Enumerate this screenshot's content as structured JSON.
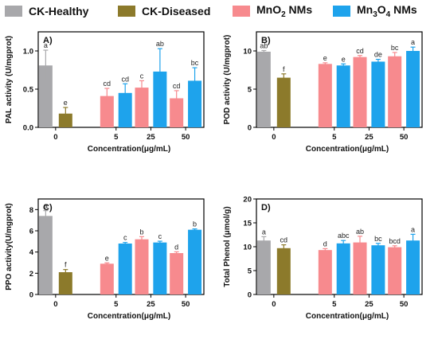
{
  "legend": [
    {
      "label": "CK-Healthy",
      "color": "#a8a8ab"
    },
    {
      "label": "CK-Diseased",
      "color": "#8c7a2b"
    },
    {
      "label": "MnO",
      "sub": "2",
      "suffix": " NMs",
      "color": "#f78a8e"
    },
    {
      "label": "Mn",
      "sub": "3",
      "mid": "O",
      "sub2": "4",
      "suffix": " NMs",
      "color": "#1ea3ec"
    }
  ],
  "chart_data": [
    {
      "type": "bar",
      "panel": "A)",
      "ylabel": "PAL activity (U/mgprot)",
      "xlabel": "Concentration(μg/mL)",
      "categories": [
        "0",
        "5",
        "25",
        "50"
      ],
      "ylim": [
        0,
        1.25
      ],
      "yticks": [
        "0.0",
        "0.5",
        "1.0"
      ],
      "ytick_values": [
        0,
        0.5,
        1.0
      ],
      "bars": [
        {
          "group": 0,
          "series": 0,
          "value": 0.81,
          "err": 0.2,
          "letter": "a"
        },
        {
          "group": 0,
          "series": 1,
          "value": 0.18,
          "err": 0.08,
          "letter": "e"
        },
        {
          "group": 1,
          "series": 2,
          "value": 0.41,
          "err": 0.1,
          "letter": "cd"
        },
        {
          "group": 1,
          "series": 3,
          "value": 0.45,
          "err": 0.12,
          "letter": "cd"
        },
        {
          "group": 2,
          "series": 2,
          "value": 0.52,
          "err": 0.09,
          "letter": "c"
        },
        {
          "group": 2,
          "series": 3,
          "value": 0.73,
          "err": 0.3,
          "letter": "ab"
        },
        {
          "group": 3,
          "series": 2,
          "value": 0.38,
          "err": 0.1,
          "letter": "cd"
        },
        {
          "group": 3,
          "series": 3,
          "value": 0.61,
          "err": 0.17,
          "letter": "bc"
        }
      ]
    },
    {
      "type": "bar",
      "panel": "B)",
      "ylabel": "POD activity (U/mgprot)",
      "xlabel": "Concentration(μg/mL)",
      "categories": [
        "0",
        "5",
        "25",
        "50"
      ],
      "ylim": [
        0,
        12.5
      ],
      "yticks": [
        "0",
        "5",
        "10"
      ],
      "ytick_values": [
        0,
        5,
        10
      ],
      "bars": [
        {
          "group": 0,
          "series": 0,
          "value": 9.9,
          "err": 0.15,
          "letter": "ab"
        },
        {
          "group": 0,
          "series": 1,
          "value": 6.5,
          "err": 0.5,
          "letter": "f"
        },
        {
          "group": 1,
          "series": 2,
          "value": 8.3,
          "err": 0.15,
          "letter": "e"
        },
        {
          "group": 1,
          "series": 3,
          "value": 8.1,
          "err": 0.2,
          "letter": "e"
        },
        {
          "group": 2,
          "series": 2,
          "value": 9.2,
          "err": 0.2,
          "letter": "cd"
        },
        {
          "group": 2,
          "series": 3,
          "value": 8.6,
          "err": 0.3,
          "letter": "de"
        },
        {
          "group": 3,
          "series": 2,
          "value": 9.3,
          "err": 0.5,
          "letter": "bc"
        },
        {
          "group": 3,
          "series": 3,
          "value": 10.0,
          "err": 0.5,
          "letter": "a"
        }
      ]
    },
    {
      "type": "bar",
      "panel": "C)",
      "ylabel": "PPO activity(U/mgprot)",
      "xlabel": "Concentration(μg/mL)",
      "categories": [
        "0",
        "5",
        "25",
        "50"
      ],
      "ylim": [
        0,
        9
      ],
      "yticks": [
        "0",
        "2",
        "4",
        "6",
        "8"
      ],
      "ytick_values": [
        0,
        2,
        4,
        6,
        8
      ],
      "bars": [
        {
          "group": 0,
          "series": 0,
          "value": 7.4,
          "err": 0.5,
          "letter": "a"
        },
        {
          "group": 0,
          "series": 1,
          "value": 2.1,
          "err": 0.25,
          "letter": "f"
        },
        {
          "group": 1,
          "series": 2,
          "value": 2.9,
          "err": 0.08,
          "letter": "e"
        },
        {
          "group": 1,
          "series": 3,
          "value": 4.8,
          "err": 0.1,
          "letter": "c"
        },
        {
          "group": 2,
          "series": 2,
          "value": 5.2,
          "err": 0.25,
          "letter": "b"
        },
        {
          "group": 2,
          "series": 3,
          "value": 4.9,
          "err": 0.12,
          "letter": "c"
        },
        {
          "group": 3,
          "series": 2,
          "value": 3.9,
          "err": 0.12,
          "letter": "d"
        },
        {
          "group": 3,
          "series": 3,
          "value": 6.1,
          "err": 0.08,
          "letter": "b"
        }
      ]
    },
    {
      "type": "bar",
      "panel": "D)",
      "ylabel": "Total Phenol (μmol/g)",
      "xlabel": "Concentration(μg/mL)",
      "categories": [
        "0",
        "5",
        "25",
        "50"
      ],
      "ylim": [
        0,
        20
      ],
      "yticks": [
        "0",
        "5",
        "10",
        "15",
        "20"
      ],
      "ytick_values": [
        0,
        5,
        10,
        15,
        20
      ],
      "bars": [
        {
          "group": 0,
          "series": 0,
          "value": 11.3,
          "err": 0.8,
          "letter": "a"
        },
        {
          "group": 0,
          "series": 1,
          "value": 9.7,
          "err": 0.7,
          "letter": "cd"
        },
        {
          "group": 1,
          "series": 2,
          "value": 9.3,
          "err": 0.3,
          "letter": "d"
        },
        {
          "group": 1,
          "series": 3,
          "value": 10.7,
          "err": 0.6,
          "letter": "abc"
        },
        {
          "group": 2,
          "series": 2,
          "value": 10.9,
          "err": 1.3,
          "letter": "ab"
        },
        {
          "group": 2,
          "series": 3,
          "value": 10.3,
          "err": 0.4,
          "letter": "bc"
        },
        {
          "group": 3,
          "series": 2,
          "value": 9.9,
          "err": 0.3,
          "letter": "bcd"
        },
        {
          "group": 3,
          "series": 3,
          "value": 11.3,
          "err": 1.3,
          "letter": "a"
        }
      ]
    }
  ]
}
